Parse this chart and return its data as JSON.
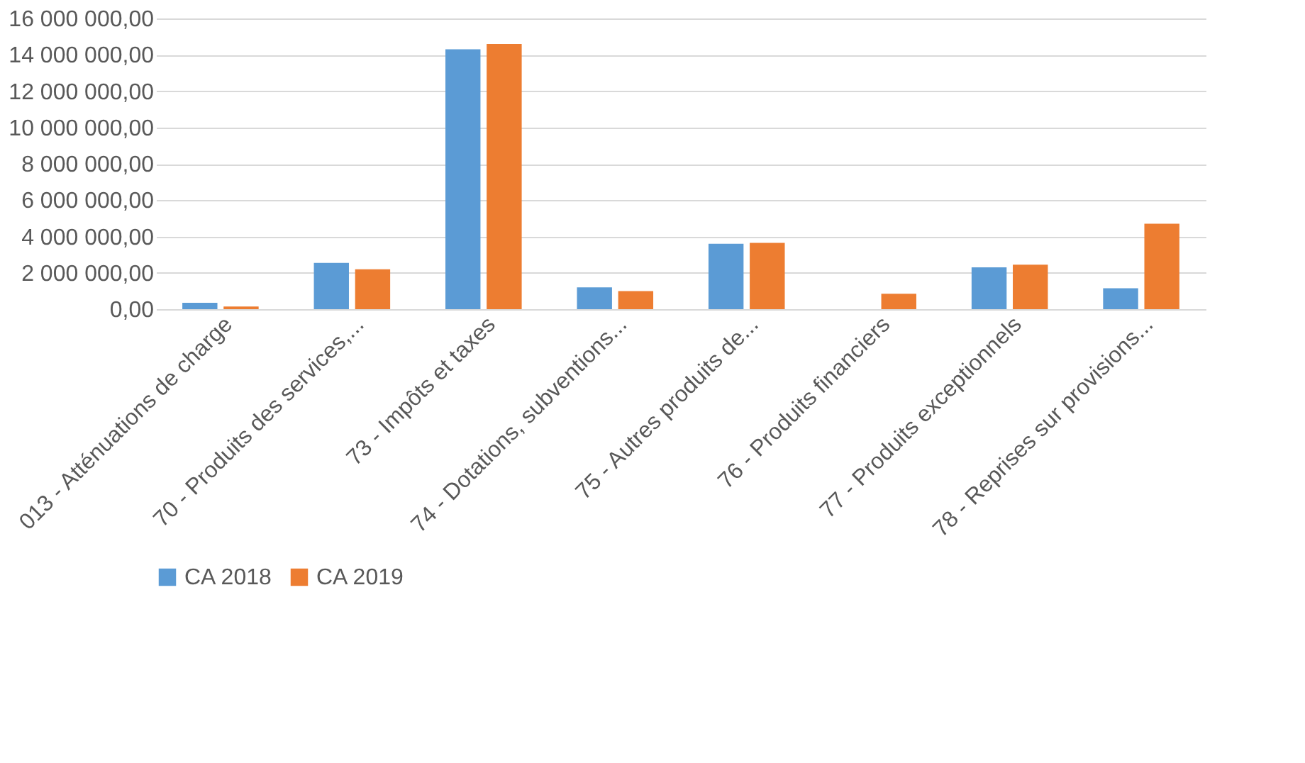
{
  "chart_data": {
    "type": "bar",
    "categories": [
      "013 - Atténuations de charge",
      "70 - Produits des services,...",
      "73 - Impôts et taxes",
      "74 - Dotations, subventions...",
      "75 - Autres produits de...",
      "76 - Produits financiers",
      "77 - Produits exceptionnels",
      "78 - Reprises sur provisions..."
    ],
    "series": [
      {
        "name": "CA 2018",
        "color": "#5b9bd5",
        "values": [
          350000,
          2550000,
          14300000,
          1200000,
          3600000,
          0,
          2300000,
          1150000
        ]
      },
      {
        "name": "CA 2019",
        "color": "#ed7d31",
        "values": [
          150000,
          2200000,
          14600000,
          1000000,
          3650000,
          850000,
          2450000,
          4700000
        ]
      }
    ],
    "ylim": [
      0,
      16000000
    ],
    "yticks": [
      {
        "value": 0,
        "label": "0,00"
      },
      {
        "value": 2000000,
        "label": "2 000 000,00"
      },
      {
        "value": 4000000,
        "label": "4 000 000,00"
      },
      {
        "value": 6000000,
        "label": "6 000 000,00"
      },
      {
        "value": 8000000,
        "label": "8 000 000,00"
      },
      {
        "value": 10000000,
        "label": "10 000 000,00"
      },
      {
        "value": 12000000,
        "label": "12 000 000,00"
      },
      {
        "value": 14000000,
        "label": "14 000 000,00"
      },
      {
        "value": 16000000,
        "label": "16 000 000,00"
      }
    ],
    "grid": "y",
    "legend": "bottom"
  }
}
